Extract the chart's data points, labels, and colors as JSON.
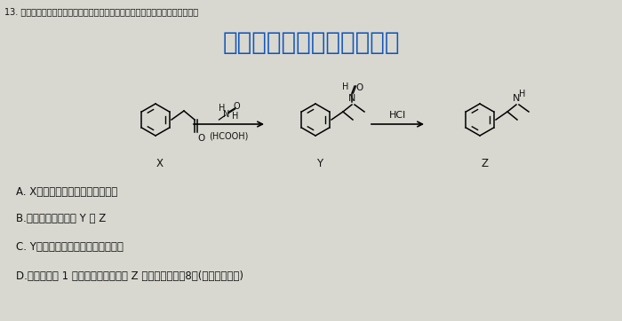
{
  "bg_color": "#d8d8d0",
  "title_line1": "13. 有机物名是一种常用的农板哑答剂，其某种合成路线如下，下列说法错误的是",
  "watermark": "微信公众号关注：趣找答案",
  "label_X": "X",
  "label_Y": "Y",
  "label_Z": "Z",
  "reagent_above1": "H",
  "reagent_above2": "N",
  "reagent_above3": "O",
  "reagent_above4": "H",
  "reagent_below": "(HCOOH)",
  "arrow_label": "HCl",
  "optionA": "A. X分子中所有碳原子可能共平面",
  "optionB": "B.能用銀氨溶液鉴别 Y 与 Z",
  "optionC": "C. Y可以发生取代、加成和氧化反应",
  "optionD": "D.苯环上只有 1 个取代基且含氨基的 Z 的同分异构体有8种(不含立体异构)",
  "watermark_color": "#1155bb",
  "text_color": "#111111",
  "font_size_title": 7.0,
  "font_size_options": 8.5,
  "font_size_watermark": 20,
  "font_size_label": 8.5,
  "font_size_chem": 7.0
}
